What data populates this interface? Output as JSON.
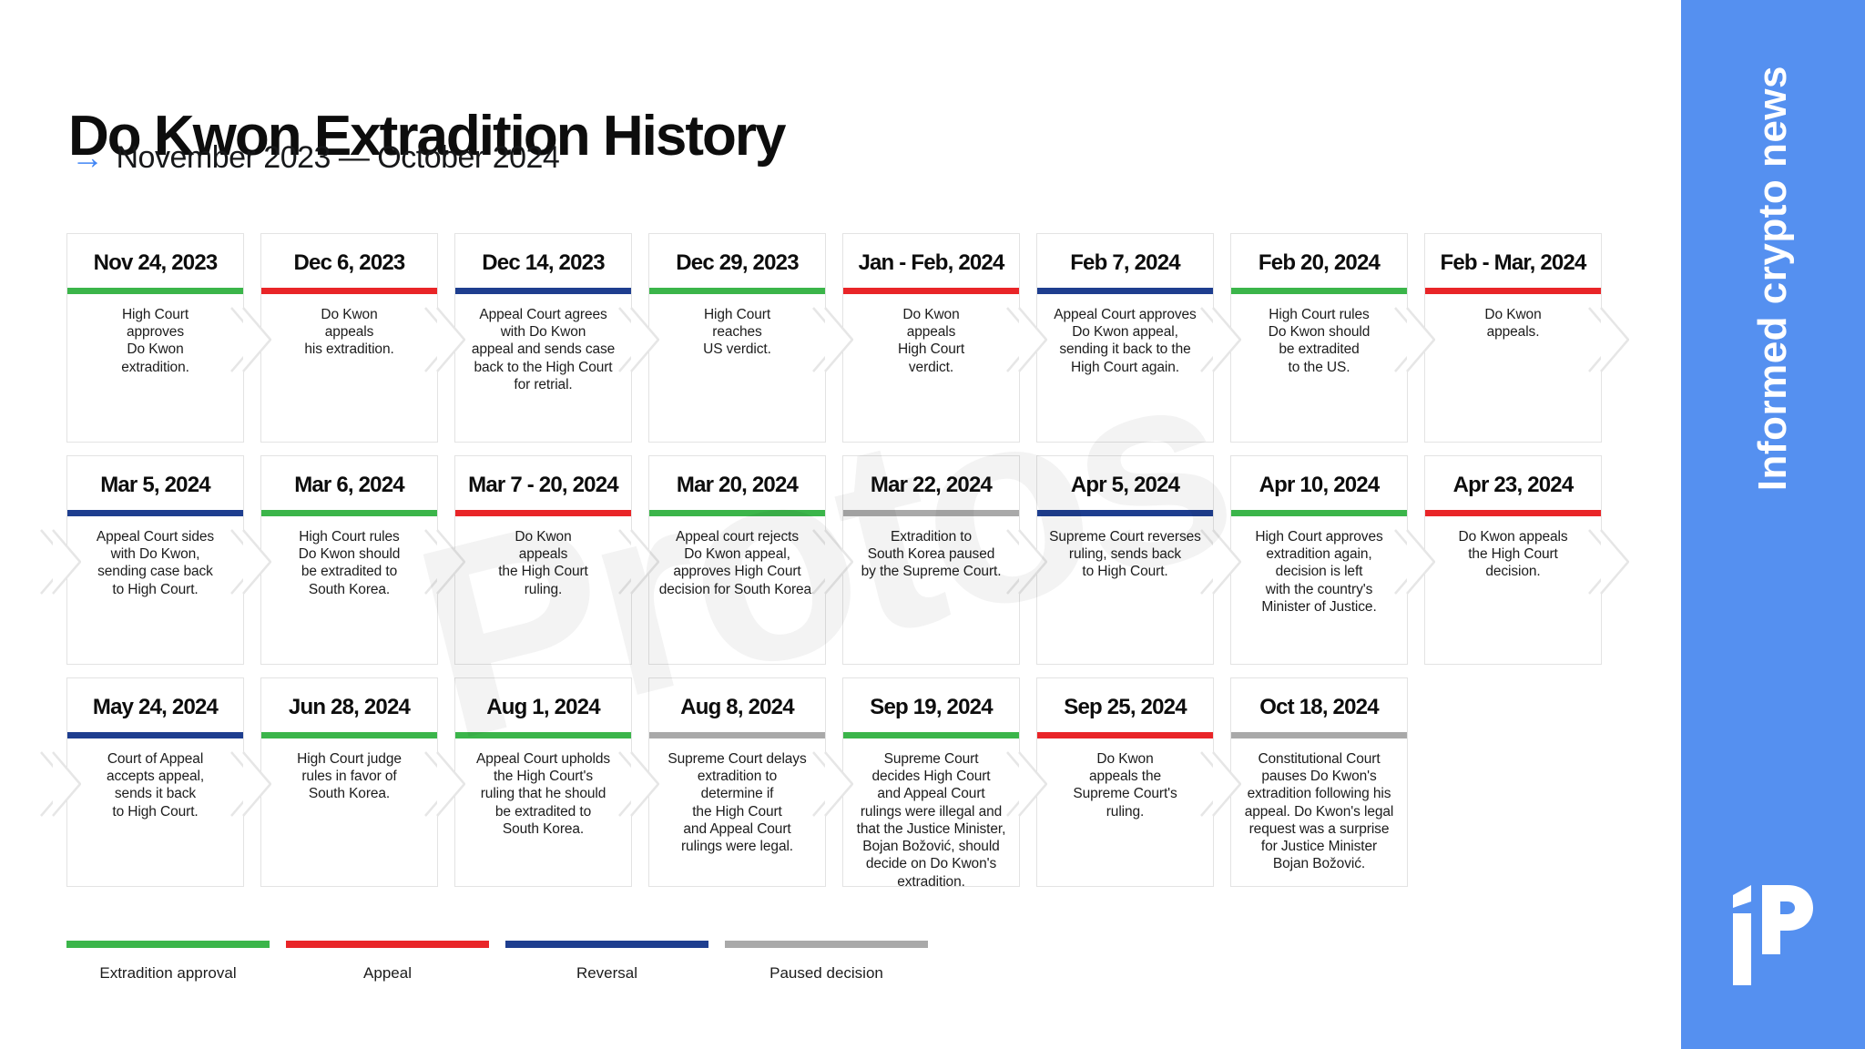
{
  "title": "Do Kwon Extradition History",
  "subtitle": "November 2023 — October 2024",
  "subtitle_arrow": "→",
  "watermark": "Protos",
  "colors": {
    "accent_arrow": "#4286f5",
    "sidebar_blue": "#5590f0",
    "card_border": "#e3e3e3",
    "types": {
      "approval": "#3bb54a",
      "appeal": "#e92528",
      "reversal": "#1e3e8f",
      "paused": "#a9a9a9"
    }
  },
  "timeline": {
    "rows": [
      [
        {
          "date": "Nov 24, 2023",
          "type": "approval",
          "text": "High Court\napproves\nDo Kwon\nextradition."
        },
        {
          "date": "Dec 6, 2023",
          "type": "appeal",
          "text": "Do Kwon\nappeals\nhis extradition."
        },
        {
          "date": "Dec 14, 2023",
          "type": "reversal",
          "text": "Appeal Court agrees\nwith Do Kwon\nappeal and sends case\nback to the High Court\nfor retrial."
        },
        {
          "date": "Dec 29, 2023",
          "type": "approval",
          "text": "High Court\nreaches\nUS verdict."
        },
        {
          "date": "Jan - Feb, 2024",
          "type": "appeal",
          "text": "Do Kwon\nappeals\nHigh Court\nverdict."
        },
        {
          "date": "Feb 7, 2024",
          "type": "reversal",
          "text": "Appeal Court approves\nDo Kwon appeal,\nsending it back to the\nHigh Court again."
        },
        {
          "date": "Feb 20, 2024",
          "type": "approval",
          "text": "High Court rules\nDo Kwon should\nbe extradited\nto the US."
        },
        {
          "date": "Feb - Mar, 2024",
          "type": "appeal",
          "text": "Do Kwon\nappeals."
        }
      ],
      [
        {
          "date": "Mar 5, 2024",
          "type": "reversal",
          "text": "Appeal Court sides\nwith Do Kwon,\nsending case back\nto High Court."
        },
        {
          "date": "Mar 6, 2024",
          "type": "approval",
          "text": "High Court rules\nDo Kwon should\nbe extradited to\nSouth Korea."
        },
        {
          "date": "Mar 7 - 20, 2024",
          "type": "appeal",
          "text": "Do Kwon\nappeals\nthe High Court\nruling."
        },
        {
          "date": "Mar 20, 2024",
          "type": "approval",
          "text": "Appeal court rejects\nDo Kwon appeal,\napproves High Court\ndecision for South Korea."
        },
        {
          "date": "Mar 22, 2024",
          "type": "paused",
          "text": "Extradition to\nSouth Korea paused\nby the Supreme Court."
        },
        {
          "date": "Apr 5, 2024",
          "type": "reversal",
          "text": "Supreme Court reverses\nruling, sends back\nto High Court."
        },
        {
          "date": "Apr 10, 2024",
          "type": "approval",
          "text": "High Court approves\nextradition again,\ndecision is left\nwith the country's\nMinister of Justice."
        },
        {
          "date": "Apr 23, 2024",
          "type": "appeal",
          "text": "Do Kwon appeals\nthe High Court\ndecision."
        }
      ],
      [
        {
          "date": "May 24, 2024",
          "type": "reversal",
          "text": "Court of Appeal\naccepts appeal,\nsends it back\nto High Court."
        },
        {
          "date": "Jun 28, 2024",
          "type": "approval",
          "text": "High Court judge\nrules in favor of\nSouth Korea."
        },
        {
          "date": "Aug 1, 2024",
          "type": "approval",
          "text": "Appeal Court upholds\nthe High Court's\nruling that he should\nbe extradited to\nSouth Korea."
        },
        {
          "date": "Aug 8, 2024",
          "type": "paused",
          "text": "Supreme Court delays\nextradition to\ndetermine if\nthe High Court\nand Appeal Court\nrulings were legal."
        },
        {
          "date": "Sep 19, 2024",
          "type": "approval",
          "text": "Supreme Court\ndecides High Court\nand Appeal Court\nrulings were illegal and\nthat the Justice Minister,\nBojan Božović, should\ndecide on Do Kwon's\nextradition."
        },
        {
          "date": "Sep 25, 2024",
          "type": "appeal",
          "text": "Do Kwon\nappeals the\nSupreme Court's\nruling."
        },
        {
          "date": "Oct 18, 2024",
          "type": "paused",
          "text": "Constitutional Court\npauses Do Kwon's\nextradition following his\nappeal. Do Kwon's legal\nrequest was a surprise\nfor Justice Minister\nBojan Božović."
        }
      ]
    ]
  },
  "legend": [
    {
      "label": "Extradition approval",
      "type": "approval"
    },
    {
      "label": "Appeal",
      "type": "appeal"
    },
    {
      "label": "Reversal",
      "type": "reversal"
    },
    {
      "label": "Paused decision",
      "type": "paused"
    }
  ],
  "sidebar": {
    "tagline": "Informed crypto news",
    "logo": "protos-logo"
  }
}
